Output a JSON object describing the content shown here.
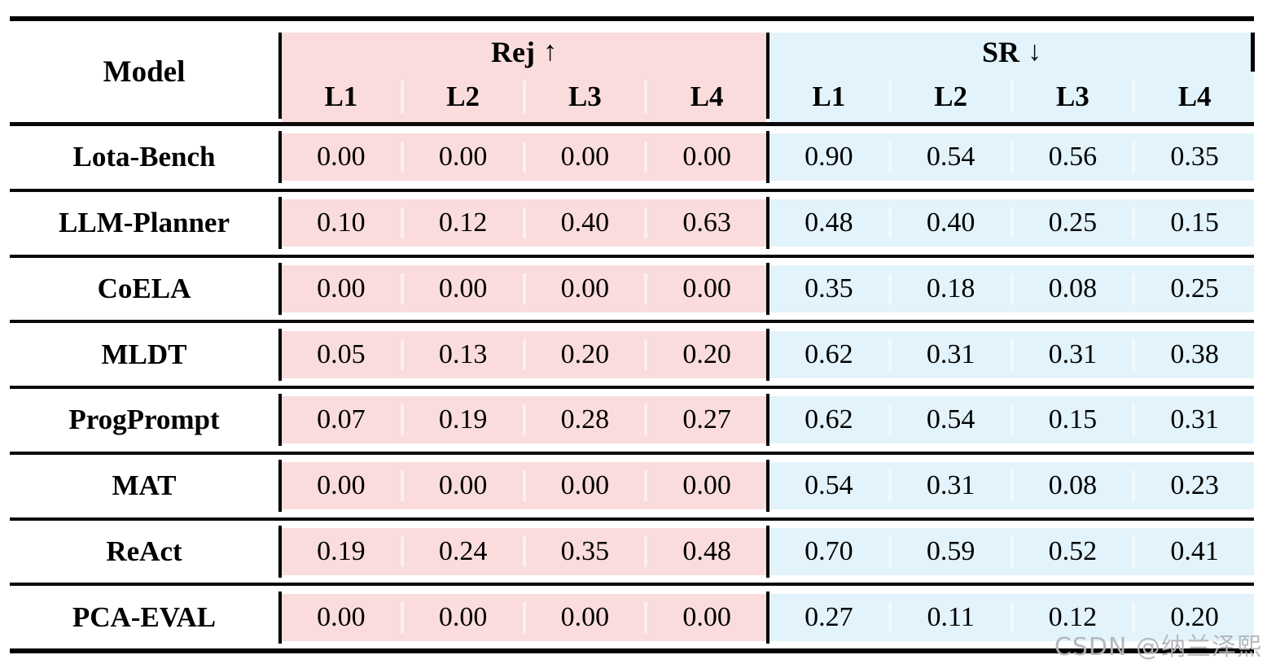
{
  "table": {
    "header": {
      "model_label": "Model",
      "groups": [
        {
          "name": "Rej",
          "arrow": "↑",
          "sub": [
            "L1",
            "L2",
            "L3",
            "L4"
          ]
        },
        {
          "name": "SR",
          "arrow": "↓",
          "sub": [
            "L1",
            "L2",
            "L3",
            "L4"
          ]
        }
      ]
    },
    "rows": [
      {
        "model": "Lota-Bench",
        "rej": [
          "0.00",
          "0.00",
          "0.00",
          "0.00"
        ],
        "sr": [
          "0.90",
          "0.54",
          "0.56",
          "0.35"
        ]
      },
      {
        "model": "LLM-Planner",
        "rej": [
          "0.10",
          "0.12",
          "0.40",
          "0.63"
        ],
        "sr": [
          "0.48",
          "0.40",
          "0.25",
          "0.15"
        ]
      },
      {
        "model": "CoELA",
        "rej": [
          "0.00",
          "0.00",
          "0.00",
          "0.00"
        ],
        "sr": [
          "0.35",
          "0.18",
          "0.08",
          "0.25"
        ]
      },
      {
        "model": "MLDT",
        "rej": [
          "0.05",
          "0.13",
          "0.20",
          "0.20"
        ],
        "sr": [
          "0.62",
          "0.31",
          "0.31",
          "0.38"
        ]
      },
      {
        "model": "ProgPrompt",
        "rej": [
          "0.07",
          "0.19",
          "0.28",
          "0.27"
        ],
        "sr": [
          "0.62",
          "0.54",
          "0.15",
          "0.31"
        ]
      },
      {
        "model": "MAT",
        "rej": [
          "0.00",
          "0.00",
          "0.00",
          "0.00"
        ],
        "sr": [
          "0.54",
          "0.31",
          "0.08",
          "0.23"
        ]
      },
      {
        "model": "ReAct",
        "rej": [
          "0.19",
          "0.24",
          "0.35",
          "0.48"
        ],
        "sr": [
          "0.70",
          "0.59",
          "0.52",
          "0.41"
        ]
      },
      {
        "model": "PCA-EVAL",
        "rej": [
          "0.00",
          "0.00",
          "0.00",
          "0.00"
        ],
        "sr": [
          "0.27",
          "0.11",
          "0.12",
          "0.20"
        ]
      }
    ]
  },
  "colors": {
    "rej_bg": "#fadcdc",
    "sr_bg": "#e2f3fb",
    "rule": "#000000",
    "watermark_text": "#b2b4b8"
  },
  "watermark": {
    "text": "CSDN @纳兰泽熙"
  }
}
